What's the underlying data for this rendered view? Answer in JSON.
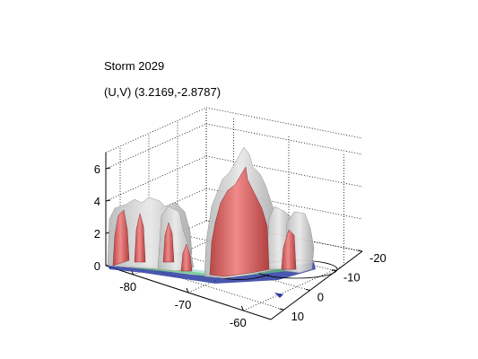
{
  "chart_data": {
    "type": "surface3d",
    "title": "Storm 2029",
    "subtitle": "(U,V) (3.2169,-2.8787)",
    "xlabel": "",
    "ylabel": "",
    "zlabel": "",
    "x_ticks": [
      -80,
      -70,
      -60
    ],
    "y_ticks": [
      10,
      0,
      -10,
      -20
    ],
    "z_ticks": [
      0,
      2,
      4,
      6
    ],
    "xlim": [
      -85,
      -55
    ],
    "ylim": [
      -20,
      15
    ],
    "zlim": [
      0,
      7
    ],
    "grid": true,
    "colors": {
      "outer_isosurface": "#c8c8c8",
      "inner_isosurface": "#e07070",
      "base_slice_low": "#2a3aa0",
      "base_slice_mid": "#5fbf7f"
    }
  }
}
